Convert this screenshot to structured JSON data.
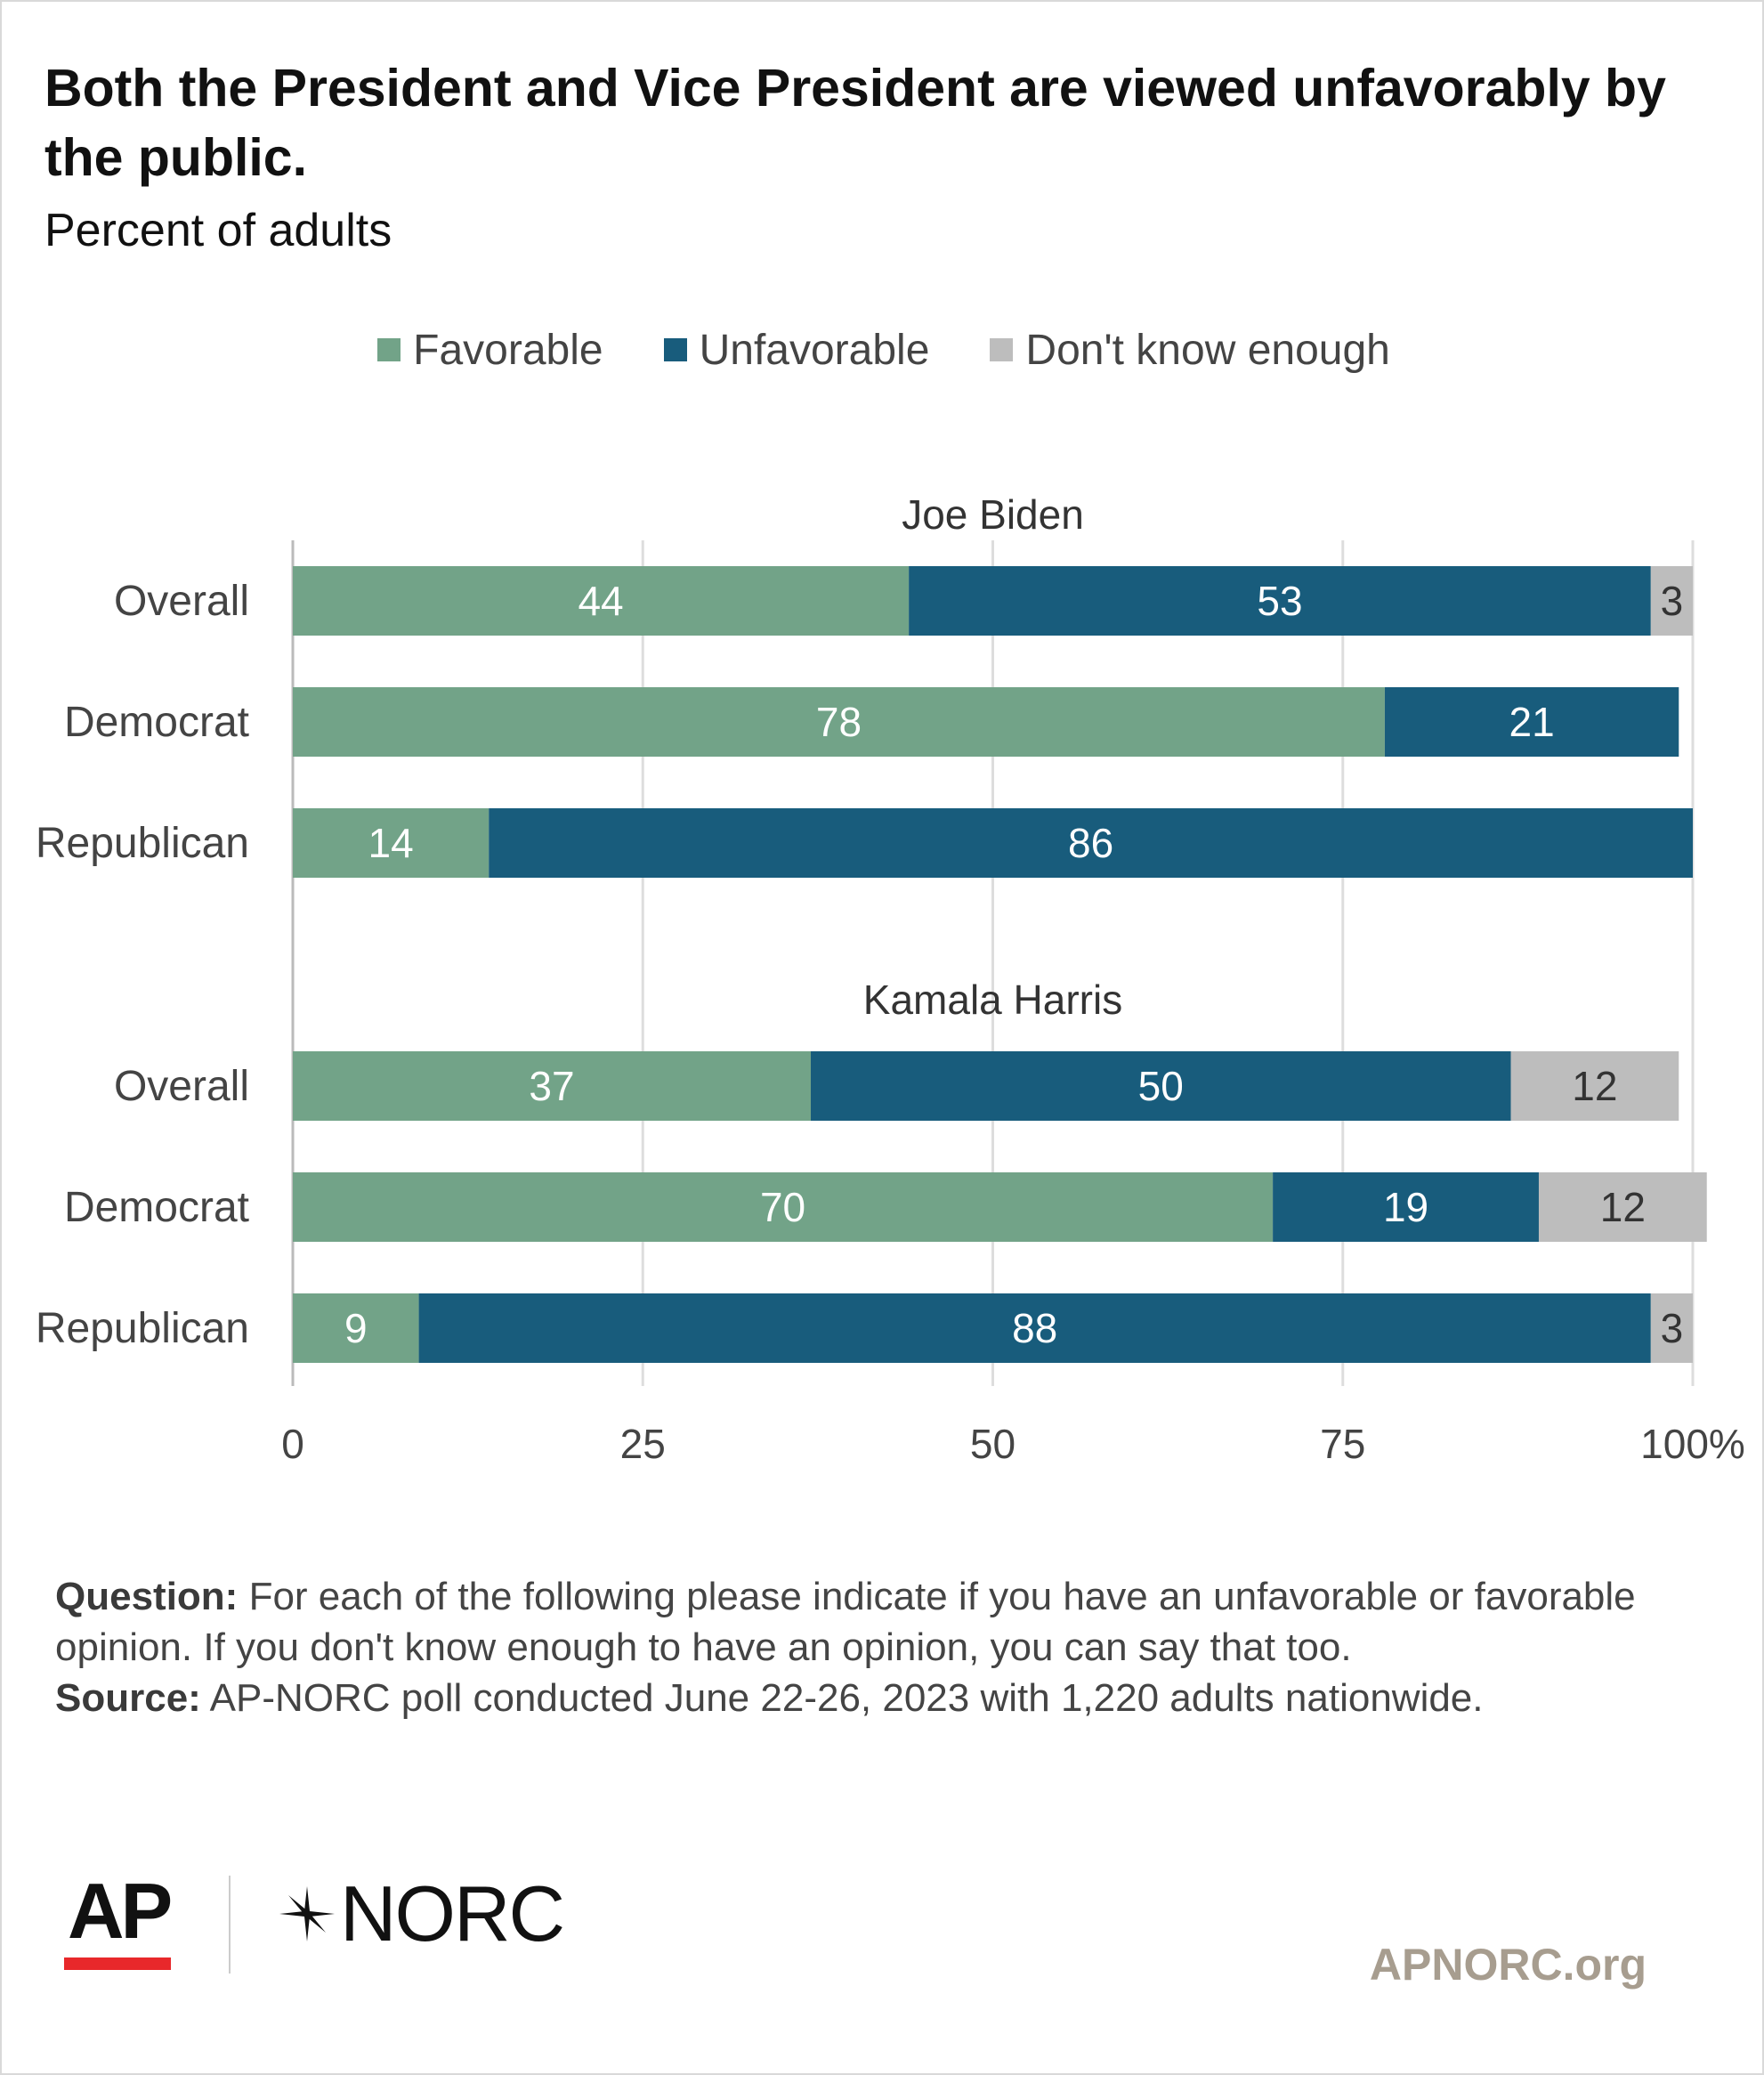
{
  "chart_data": {
    "type": "bar",
    "orientation": "horizontal",
    "stacked": true,
    "title": "Both the President and Vice President are viewed unfavorably by the public.",
    "subtitle": "Percent of adults",
    "legend": {
      "placement": "top-center",
      "items": [
        {
          "name": "Favorable",
          "color": "#72a388"
        },
        {
          "name": "Unfavorable",
          "color": "#185c7c"
        },
        {
          "name": "Don't know enough",
          "color": "#bdbdbd"
        }
      ]
    },
    "xlim": [
      0,
      100
    ],
    "xticks": [
      "0",
      "25",
      "50",
      "75",
      "100%"
    ],
    "grid": true,
    "groups": [
      {
        "name": "Joe Biden",
        "rows": [
          {
            "category": "Overall",
            "values": [
              44,
              53,
              3
            ],
            "labels": [
              "44",
              "53",
              "3"
            ]
          },
          {
            "category": "Democrat",
            "values": [
              78,
              21,
              0
            ],
            "labels": [
              "78",
              "21",
              ""
            ]
          },
          {
            "category": "Republican",
            "values": [
              14,
              86,
              0
            ],
            "labels": [
              "14",
              "86",
              ""
            ]
          }
        ]
      },
      {
        "name": "Kamala Harris",
        "rows": [
          {
            "category": "Overall",
            "values": [
              37,
              50,
              12
            ],
            "labels": [
              "37",
              "50",
              "12"
            ]
          },
          {
            "category": "Democrat",
            "values": [
              70,
              19,
              12
            ],
            "labels": [
              "70",
              "19",
              "12"
            ]
          },
          {
            "category": "Republican",
            "values": [
              9,
              88,
              3
            ],
            "labels": [
              "9",
              "88",
              "3"
            ]
          }
        ]
      }
    ]
  },
  "notes": {
    "question_label": "Question:",
    "question_text": "For each of the following please indicate if you have an unfavorable or favorable opinion. If you don't know enough to have an opinion, you can say that too.",
    "source_label": "Source:",
    "source_text": "AP-NORC poll conducted June 22-26, 2023 with 1,220 adults nationwide."
  },
  "logos": {
    "ap": "AP",
    "norc": "NORC",
    "ap_bar_color": "#e8282b"
  },
  "footer": {
    "site": "APNORC.org"
  }
}
